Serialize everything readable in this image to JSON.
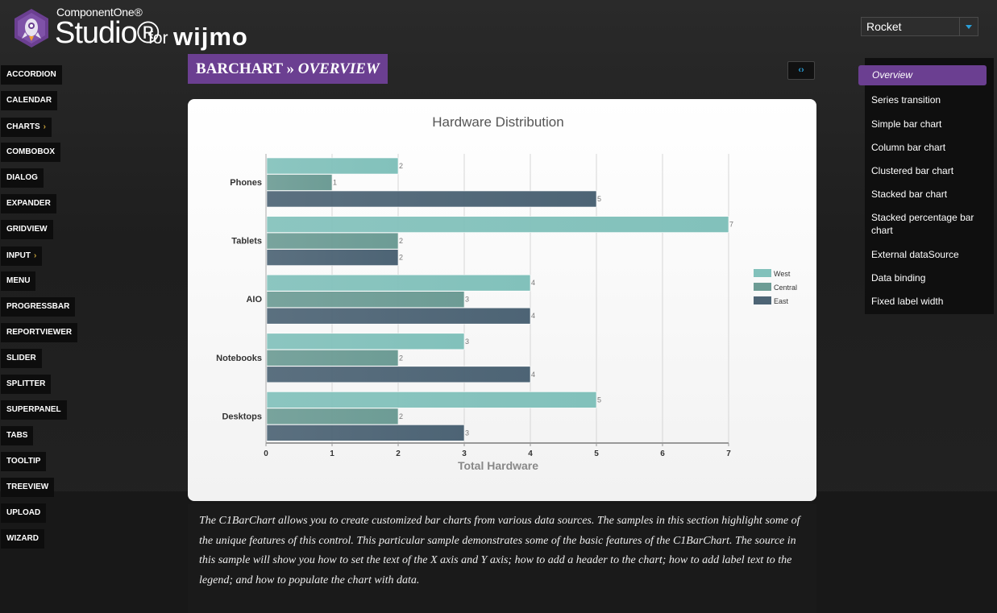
{
  "logo": {
    "small": "ComponentOne®",
    "big": "Studio®",
    "for": "for",
    "wijmo": "wijmo"
  },
  "theme_select": {
    "value": "Rocket",
    "icon": "chevron-down-icon"
  },
  "leftnav": {
    "items": [
      {
        "label": "ACCORDION"
      },
      {
        "label": "CALENDAR"
      },
      {
        "label": "CHARTS",
        "chevron": "›"
      },
      {
        "label": "COMBOBOX"
      },
      {
        "label": "DIALOG"
      },
      {
        "label": "EXPANDER"
      },
      {
        "label": "GRIDVIEW"
      },
      {
        "label": "INPUT",
        "chevron": "›"
      },
      {
        "label": "MENU"
      },
      {
        "label": "PROGRESSBAR"
      },
      {
        "label": "REPORTVIEWER"
      },
      {
        "label": "SLIDER"
      },
      {
        "label": "SPLITTER"
      },
      {
        "label": "SUPERPANEL"
      },
      {
        "label": "TABS"
      },
      {
        "label": "TOOLTIP"
      },
      {
        "label": "TREEVIEW"
      },
      {
        "label": "UPLOAD"
      },
      {
        "label": "WIZARD"
      }
    ]
  },
  "heading": {
    "section": "BARCHART",
    "sep": " » ",
    "page": "OVERVIEW"
  },
  "code_button": {
    "label": "‹›"
  },
  "rightnav": {
    "active": "Overview",
    "items": [
      "Series transition",
      "Simple bar chart",
      "Column bar chart",
      "Clustered bar chart",
      "Stacked bar chart",
      "Stacked percentage bar chart",
      "External dataSource",
      "Data binding",
      "Fixed label width"
    ]
  },
  "chart_data": {
    "type": "bar",
    "orientation": "horizontal",
    "title": "Hardware Distribution",
    "xlabel": "Total Hardware",
    "ylabel": "",
    "categories": [
      "Phones",
      "Tablets",
      "AIO",
      "Notebooks",
      "Desktops"
    ],
    "series": [
      {
        "name": "West",
        "values": [
          2,
          7,
          4,
          3,
          5
        ],
        "color": "#82c1bb"
      },
      {
        "name": "Central",
        "values": [
          1,
          2,
          3,
          2,
          2
        ],
        "color": "#6d9c95"
      },
      {
        "name": "East",
        "values": [
          5,
          2,
          4,
          4,
          3
        ],
        "color": "#4d6475"
      }
    ],
    "xlim": [
      0,
      7
    ],
    "xticks": [
      0,
      1,
      2,
      3,
      4,
      5,
      6,
      7
    ],
    "grid": true,
    "legend": "right"
  },
  "description": "The C1BarChart allows you to create customized bar charts from various data sources. The samples in this section highlight some of the unique features of this control. This particular sample demonstrates some of the basic features of the C1BarChart. The source in this sample will show you how to set the text of the X axis and Y axis; how to add a header to the chart; how to add label text to the legend; and how to populate the chart with data."
}
